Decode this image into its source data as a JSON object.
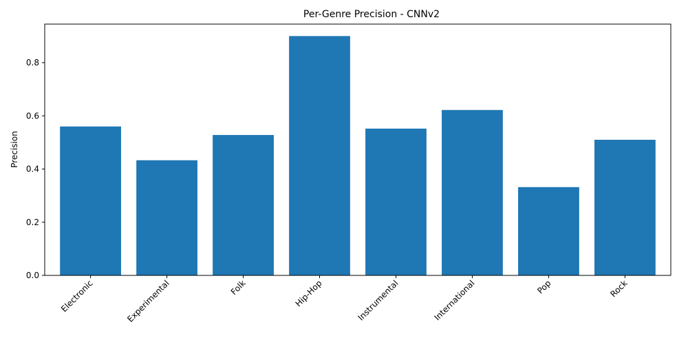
{
  "chart_data": {
    "type": "bar",
    "title": "Per-Genre Precision - CNNv2",
    "xlabel": "",
    "ylabel": "Precision",
    "categories": [
      "Electronic",
      "Experimental",
      "Folk",
      "Hip-Hop",
      "Instrumental",
      "International",
      "Pop",
      "Rock"
    ],
    "values": [
      0.56,
      0.433,
      0.528,
      0.9,
      0.552,
      0.622,
      0.332,
      0.51
    ],
    "ylim": [
      0,
      0.945
    ],
    "yticks": [
      "0.0",
      "0.2",
      "0.4",
      "0.6",
      "0.8"
    ],
    "bar_color": "#1f77b4",
    "grid": false,
    "legend": "none"
  }
}
